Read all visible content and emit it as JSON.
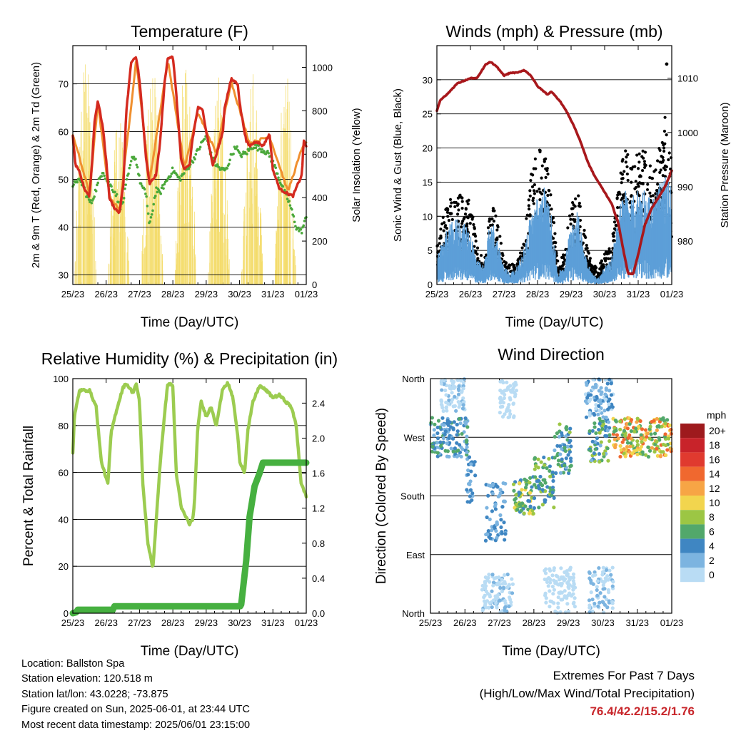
{
  "colors": {
    "temp2m": "#d42a1f",
    "temp9m": "#f0902f",
    "dewpoint": "#4aa83a",
    "solar": "#f4dc6a",
    "wind": "#5d9fd8",
    "gust": "#000000",
    "pressure": "#a8181c",
    "rh": "#9ccc50",
    "precip": "#46b040",
    "extremes": "#c8262b"
  },
  "info": {
    "location": "Location: Ballston Spa",
    "elevation": "Station elevation: 120.518 m",
    "latlon": "Station lat/lon: 43.0228; -73.875",
    "created": "Figure created on Sun, 2025-06-01, at 23:44 UTC",
    "recent": "Most recent data timestamp: 2025/06/01 23:15:00"
  },
  "extremes": {
    "heading": "Extremes For Past 7 Days",
    "subheading": "(High/Low/Max Wind/Total Precipitation)",
    "values": "76.4/42.2/15.2/1.76"
  },
  "chart_data": [
    {
      "type": "line",
      "title": "Temperature (F)",
      "xlabel": "Time (Day/UTC)",
      "ylabel": "2m & 9m T (Red, Orange) & 2m Td (Green)",
      "y2label": "Solar Insolation (Yellow)",
      "x_ticks": [
        "25/23",
        "26/23",
        "27/23",
        "28/23",
        "29/23",
        "30/23",
        "31/23",
        "01/23"
      ],
      "xlim": [
        0,
        7
      ],
      "ylim": [
        28,
        78
      ],
      "y_ticks": [
        30,
        40,
        50,
        60,
        70
      ],
      "y2lim": [
        0,
        1100
      ],
      "y2_ticks": [
        0,
        200,
        400,
        600,
        800,
        1000
      ],
      "grid": "horizontal",
      "series": [
        {
          "name": "2m T",
          "axis": "left",
          "color_key": "temp2m",
          "x": [
            0,
            0.08,
            0.2,
            0.35,
            0.5,
            0.58,
            0.65,
            0.75,
            0.9,
            1.0,
            1.1,
            1.25,
            1.4,
            1.52,
            1.6,
            1.75,
            1.9,
            2.0,
            2.2,
            2.3,
            2.5,
            2.62,
            2.75,
            2.85,
            3.0,
            3.1,
            3.25,
            3.35,
            3.5,
            3.58,
            3.75,
            3.9,
            4.0,
            4.2,
            4.3,
            4.5,
            4.55,
            4.75,
            4.95,
            5.0,
            5.2,
            5.3,
            5.5,
            5.7,
            5.9,
            6.0,
            6.2,
            6.45,
            6.6,
            6.75,
            6.87,
            6.92,
            7.0
          ],
          "y": [
            59,
            53,
            51.5,
            48,
            46.5,
            54,
            62,
            66.5,
            61,
            54,
            46,
            44,
            43,
            49,
            64,
            74.5,
            75.5,
            71,
            54,
            49,
            51,
            58,
            70,
            75.5,
            75.8,
            68,
            54,
            52,
            53,
            58,
            65,
            64.5,
            60,
            53,
            55,
            60,
            65,
            71,
            70,
            66,
            58,
            57,
            58,
            57,
            59.5,
            52,
            48,
            47,
            46.5,
            49,
            51,
            58,
            57
          ]
        },
        {
          "name": "9m T",
          "axis": "left",
          "color_key": "temp9m",
          "x": [
            0,
            0.5,
            0.75,
            1.1,
            1.4,
            1.9,
            2.3,
            2.85,
            3.35,
            3.75,
            4.3,
            4.75,
            5.3,
            5.9,
            6.45,
            6.92,
            7.0
          ],
          "y": [
            59.5,
            47,
            66,
            46.5,
            43.5,
            75,
            49.5,
            75,
            52.5,
            64,
            55.5,
            70.5,
            57.5,
            59,
            47.5,
            57.5,
            57.5
          ]
        },
        {
          "name": "2m Td",
          "axis": "left",
          "color_key": "dewpoint",
          "x": [
            0,
            0.1,
            0.3,
            0.45,
            0.55,
            0.7,
            0.9,
            1.0,
            1.1,
            1.3,
            1.4,
            1.5,
            1.6,
            1.7,
            1.8,
            1.9,
            2.0,
            2.1,
            2.2,
            2.3,
            2.5,
            2.6,
            2.75,
            3.0,
            3.2,
            3.4,
            3.6,
            3.75,
            3.9,
            4.0,
            4.15,
            4.3,
            4.45,
            4.6,
            4.75,
            4.9,
            5.0,
            5.2,
            5.4,
            5.6,
            5.75,
            5.9,
            6.1,
            6.3,
            6.5,
            6.7,
            6.85,
            7.0
          ],
          "y": [
            48,
            50,
            49,
            46,
            45,
            48,
            52,
            50,
            49,
            47,
            44,
            45,
            49,
            52,
            55,
            54,
            50,
            48,
            47,
            40,
            48,
            47,
            49,
            52,
            50,
            52,
            54,
            56,
            58,
            59,
            55,
            53,
            52,
            52,
            55,
            57,
            55,
            55.5,
            57,
            56.5,
            56,
            55,
            52,
            48,
            45,
            40,
            39,
            42
          ]
        },
        {
          "name": "Solar Insolation",
          "axis": "right",
          "color_key": "solar",
          "style": "spikes",
          "day_x": [
            0.38,
            1.38,
            2.38,
            3.38,
            4.38,
            5.38,
            6.38
          ],
          "peak": [
            1050,
            780,
            1040,
            1040,
            960,
            1000,
            1040
          ]
        }
      ]
    },
    {
      "type": "line",
      "title": "Winds (mph) & Pressure (mb)",
      "xlabel": "Time (Day/UTC)",
      "ylabel": "Sonic Wind & Gust (Blue, Black)",
      "y2label": "Station Pressure (Maroon)",
      "x_ticks": [
        "25/23",
        "26/23",
        "27/23",
        "28/23",
        "29/23",
        "30/23",
        "31/23",
        "01/23"
      ],
      "xlim": [
        0,
        7
      ],
      "ylim": [
        0,
        35
      ],
      "y_ticks": [
        0,
        5,
        10,
        15,
        20,
        25,
        30
      ],
      "y2lim": [
        972,
        1016
      ],
      "y2_ticks": [
        980,
        990,
        1000,
        1010
      ],
      "grid": "horizontal",
      "series": [
        {
          "name": "Sonic Wind",
          "axis": "left",
          "color_key": "wind",
          "style": "band",
          "x": [
            0,
            0.2,
            0.4,
            0.6,
            0.8,
            1.0,
            1.2,
            1.4,
            1.55,
            1.7,
            2.0,
            2.2,
            2.4,
            2.6,
            2.8,
            2.95,
            3.2,
            3.4,
            3.6,
            3.8,
            4.0,
            4.2,
            4.4,
            4.6,
            4.8,
            5.0,
            5.2,
            5.4,
            5.6,
            5.8,
            6.0,
            6.2,
            6.4,
            6.6,
            6.8,
            7.0
          ],
          "y": [
            2,
            4,
            5,
            5.5,
            5,
            4.5,
            2,
            1.5,
            4.5,
            5,
            1.5,
            1,
            1.5,
            3,
            6,
            7,
            8,
            6,
            1,
            1.5,
            5.5,
            6,
            3,
            1,
            0.5,
            1.5,
            2,
            6,
            8,
            7,
            8,
            8,
            7,
            8,
            9,
            8
          ]
        },
        {
          "name": "Gust",
          "axis": "left",
          "color_key": "gust",
          "style": "dots",
          "x": [
            0,
            0.2,
            0.4,
            0.6,
            0.8,
            1.0,
            1.2,
            1.4,
            1.55,
            1.7,
            2.0,
            2.2,
            2.4,
            2.6,
            2.8,
            2.95,
            3.2,
            3.4,
            3.6,
            3.8,
            4.0,
            4.2,
            4.4,
            4.6,
            4.8,
            5.0,
            5.2,
            5.4,
            5.6,
            5.8,
            6.0,
            6.2,
            6.4,
            6.6,
            6.8,
            7.0
          ],
          "y": [
            5,
            9,
            11,
            12,
            11,
            11,
            5,
            3,
            9,
            11,
            3,
            2.5,
            3,
            6,
            14,
            17,
            18,
            12,
            3,
            4,
            11,
            12,
            7,
            3,
            2,
            4,
            5,
            12,
            18,
            15,
            17,
            17,
            15,
            17,
            22,
            17
          ],
          "max": {
            "x": 6.85,
            "y": 32.3
          }
        },
        {
          "name": "Station Pressure",
          "axis": "right",
          "color_key": "pressure",
          "x": [
            0,
            0.1,
            0.3,
            0.6,
            0.8,
            1.0,
            1.2,
            1.45,
            1.6,
            1.8,
            2.0,
            2.2,
            2.4,
            2.6,
            2.8,
            3.0,
            3.2,
            3.3,
            3.4,
            3.5,
            3.7,
            3.9,
            4.1,
            4.3,
            4.5,
            4.7,
            4.9,
            5.1,
            5.2,
            5.4,
            5.6,
            5.7,
            5.85,
            6.0,
            6.2,
            6.4,
            6.6,
            6.8,
            7.0
          ],
          "y": [
            1004,
            1006,
            1007,
            1009,
            1009.5,
            1010,
            1010,
            1012.5,
            1013,
            1012,
            1010.5,
            1011,
            1011,
            1011.5,
            1010.5,
            1008.5,
            1007.5,
            1007,
            1007.5,
            1007,
            1005.5,
            1003.5,
            1001,
            998,
            994.5,
            992,
            990,
            988,
            987,
            983.5,
            977,
            974,
            974,
            977.5,
            983,
            986,
            988,
            990,
            993
          ]
        }
      ]
    },
    {
      "type": "line",
      "title": "Relative Humidity (%) & Precipitation (in)",
      "xlabel": "Time (Day/UTC)",
      "ylabel": "Percent & Total Rainfall",
      "x_ticks": [
        "25/23",
        "26/23",
        "27/23",
        "28/23",
        "29/23",
        "30/23",
        "31/23",
        "01/23"
      ],
      "xlim": [
        0,
        7
      ],
      "ylim": [
        0,
        100
      ],
      "y_ticks": [
        0,
        20,
        40,
        60,
        80,
        100
      ],
      "y2lim": [
        0,
        2.68
      ],
      "y2_ticks": [
        0.0,
        0.4,
        0.8,
        1.2,
        1.6,
        2.0,
        2.4
      ],
      "y2_tick_labels": [
        "0.0",
        "0.4",
        "0.8",
        "1.2",
        "1.6",
        "2.0",
        "2.4"
      ],
      "grid": "horizontal",
      "series": [
        {
          "name": "Relative Humidity",
          "axis": "left",
          "color_key": "rh",
          "x": [
            0,
            0.05,
            0.2,
            0.35,
            0.5,
            0.7,
            0.85,
            0.95,
            1.05,
            1.15,
            1.3,
            1.5,
            1.6,
            1.8,
            1.9,
            2.0,
            2.1,
            2.25,
            2.4,
            2.6,
            2.75,
            2.85,
            3.0,
            3.1,
            3.25,
            3.5,
            3.6,
            3.65,
            3.75,
            3.85,
            4.0,
            4.15,
            4.3,
            4.5,
            4.65,
            4.8,
            4.95,
            5.0,
            5.15,
            5.25,
            5.4,
            5.6,
            5.8,
            6.0,
            6.2,
            6.4,
            6.55,
            6.7,
            6.85,
            7.0
          ],
          "y": [
            68,
            84,
            95,
            95,
            95,
            88,
            65,
            60,
            55,
            77,
            86,
            96,
            98,
            94,
            98,
            90,
            55,
            30,
            19,
            60,
            85,
            98,
            97,
            60,
            45,
            38,
            40,
            48,
            80,
            90,
            84,
            88,
            80,
            96,
            98,
            92,
            75,
            65,
            60,
            78,
            90,
            97,
            95,
            92,
            93,
            90,
            88,
            80,
            55,
            50
          ]
        },
        {
          "name": "Total Precipitation",
          "axis": "right",
          "color_key": "precip",
          "x": [
            0,
            0.1,
            0.15,
            1.2,
            1.25,
            5.02,
            5.05,
            5.2,
            5.3,
            5.45,
            5.6,
            5.7,
            7.0
          ],
          "y": [
            0,
            0.01,
            0.04,
            0.04,
            0.08,
            0.08,
            0.1,
            0.6,
            1.1,
            1.45,
            1.6,
            1.72,
            1.72
          ]
        }
      ]
    },
    {
      "type": "scatter",
      "title": "Wind Direction",
      "xlabel": "Time (Day/UTC)",
      "ylabel": "Direction (Colored By Speed)",
      "x_ticks": [
        "25/23",
        "26/23",
        "27/23",
        "28/23",
        "29/23",
        "30/23",
        "31/23",
        "01/23"
      ],
      "xlim": [
        0,
        7
      ],
      "ylim": [
        0,
        360
      ],
      "y_tick_values": [
        0,
        90,
        180,
        270,
        360
      ],
      "y_tick_labels": [
        "North",
        "East",
        "South",
        "West",
        "North"
      ],
      "grid": "horizontal",
      "legend": {
        "title": "mph",
        "labels": [
          "20+",
          "18",
          "16",
          "14",
          "12",
          "10",
          "8",
          "6",
          "4",
          "2",
          "0"
        ],
        "colors": [
          "#9e1a1d",
          "#c8232a",
          "#e03a2f",
          "#f0682f",
          "#f7a545",
          "#f2d54e",
          "#9cc644",
          "#52a86b",
          "#3f86c2",
          "#7cb4e0",
          "#b9dcf4"
        ],
        "placement": "right"
      },
      "clusters": [
        {
          "x": [
            0,
            1.1
          ],
          "dir": [
            240,
            300
          ],
          "speed": [
            2,
            8
          ]
        },
        {
          "x": [
            0.3,
            1.0
          ],
          "dir": [
            310,
            360
          ],
          "speed": [
            0,
            3
          ]
        },
        {
          "x": [
            1.05,
            1.3
          ],
          "dir": [
            170,
            250
          ],
          "speed": [
            2,
            6
          ]
        },
        {
          "x": [
            1.6,
            2.2
          ],
          "dir": [
            110,
            200
          ],
          "speed": [
            2,
            6
          ]
        },
        {
          "x": [
            1.5,
            2.4
          ],
          "dir": [
            0,
            60
          ],
          "speed": [
            0,
            3
          ]
        },
        {
          "x": [
            2.0,
            2.5
          ],
          "dir": [
            300,
            360
          ],
          "speed": [
            0,
            2
          ]
        },
        {
          "x": [
            2.4,
            3.0
          ],
          "dir": [
            150,
            210
          ],
          "speed": [
            4,
            12
          ]
        },
        {
          "x": [
            3.0,
            3.6
          ],
          "dir": [
            160,
            240
          ],
          "speed": [
            4,
            9
          ]
        },
        {
          "x": [
            3.6,
            4.1
          ],
          "dir": [
            210,
            290
          ],
          "speed": [
            3,
            9
          ]
        },
        {
          "x": [
            3.3,
            4.2
          ],
          "dir": [
            0,
            70
          ],
          "speed": [
            0,
            2
          ]
        },
        {
          "x": [
            4.6,
            5.2
          ],
          "dir": [
            230,
            300
          ],
          "speed": [
            3,
            9
          ]
        },
        {
          "x": [
            4.5,
            5.3
          ],
          "dir": [
            300,
            360
          ],
          "speed": [
            0,
            6
          ]
        },
        {
          "x": [
            4.6,
            5.3
          ],
          "dir": [
            0,
            70
          ],
          "speed": [
            0,
            4
          ]
        },
        {
          "x": [
            5.3,
            7.0
          ],
          "dir": [
            240,
            300
          ],
          "speed": [
            6,
            16
          ]
        }
      ]
    }
  ]
}
